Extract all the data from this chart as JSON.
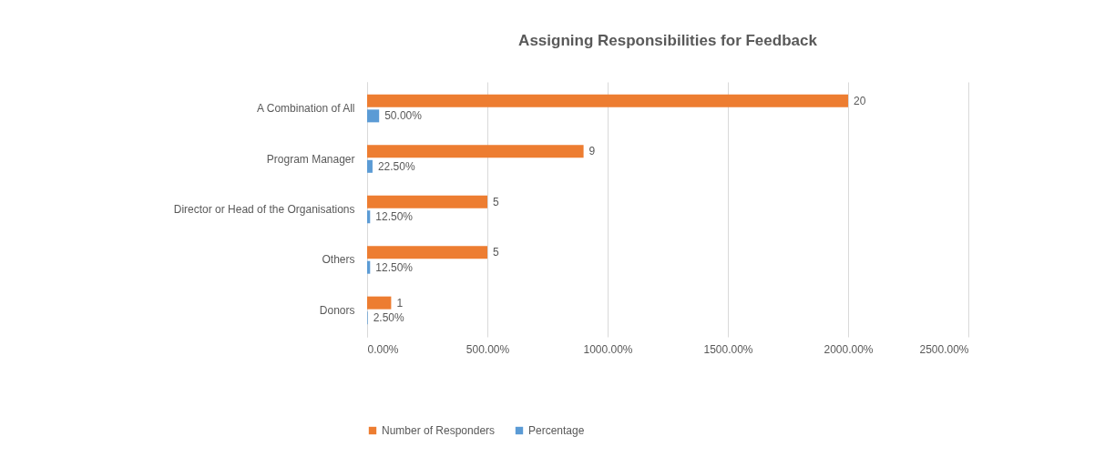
{
  "chart_data": {
    "type": "bar",
    "orientation": "horizontal",
    "title": "Assigning Responsibilities for Feedback",
    "categories": [
      "A Combination of All",
      "Program Manager",
      "Director or Head of the Organisations",
      "Others",
      "Donors"
    ],
    "series": [
      {
        "name": "Number of Responders",
        "color": "#ed7d31",
        "values": [
          20,
          9,
          5,
          5,
          1
        ],
        "value_labels": [
          "20",
          "9",
          "5",
          "5",
          "1"
        ]
      },
      {
        "name": "Percentage",
        "color": "#5b9bd5",
        "values": [
          0.5,
          0.225,
          0.125,
          0.125,
          0.025
        ],
        "value_labels": [
          "50.00%",
          "22.50%",
          "12.50%",
          "12.50%",
          "2.50%"
        ]
      }
    ],
    "xlim": [
      0,
      25
    ],
    "xticks": [
      {
        "value": 0,
        "label": "0.00%"
      },
      {
        "value": 5,
        "label": "500.00%"
      },
      {
        "value": 10,
        "label": "1000.00%"
      },
      {
        "value": 15,
        "label": "1500.00%"
      },
      {
        "value": 20,
        "label": "2000.00%"
      },
      {
        "value": 25,
        "label": "2500.00%"
      }
    ],
    "grid": "x",
    "legend": "bottom"
  }
}
